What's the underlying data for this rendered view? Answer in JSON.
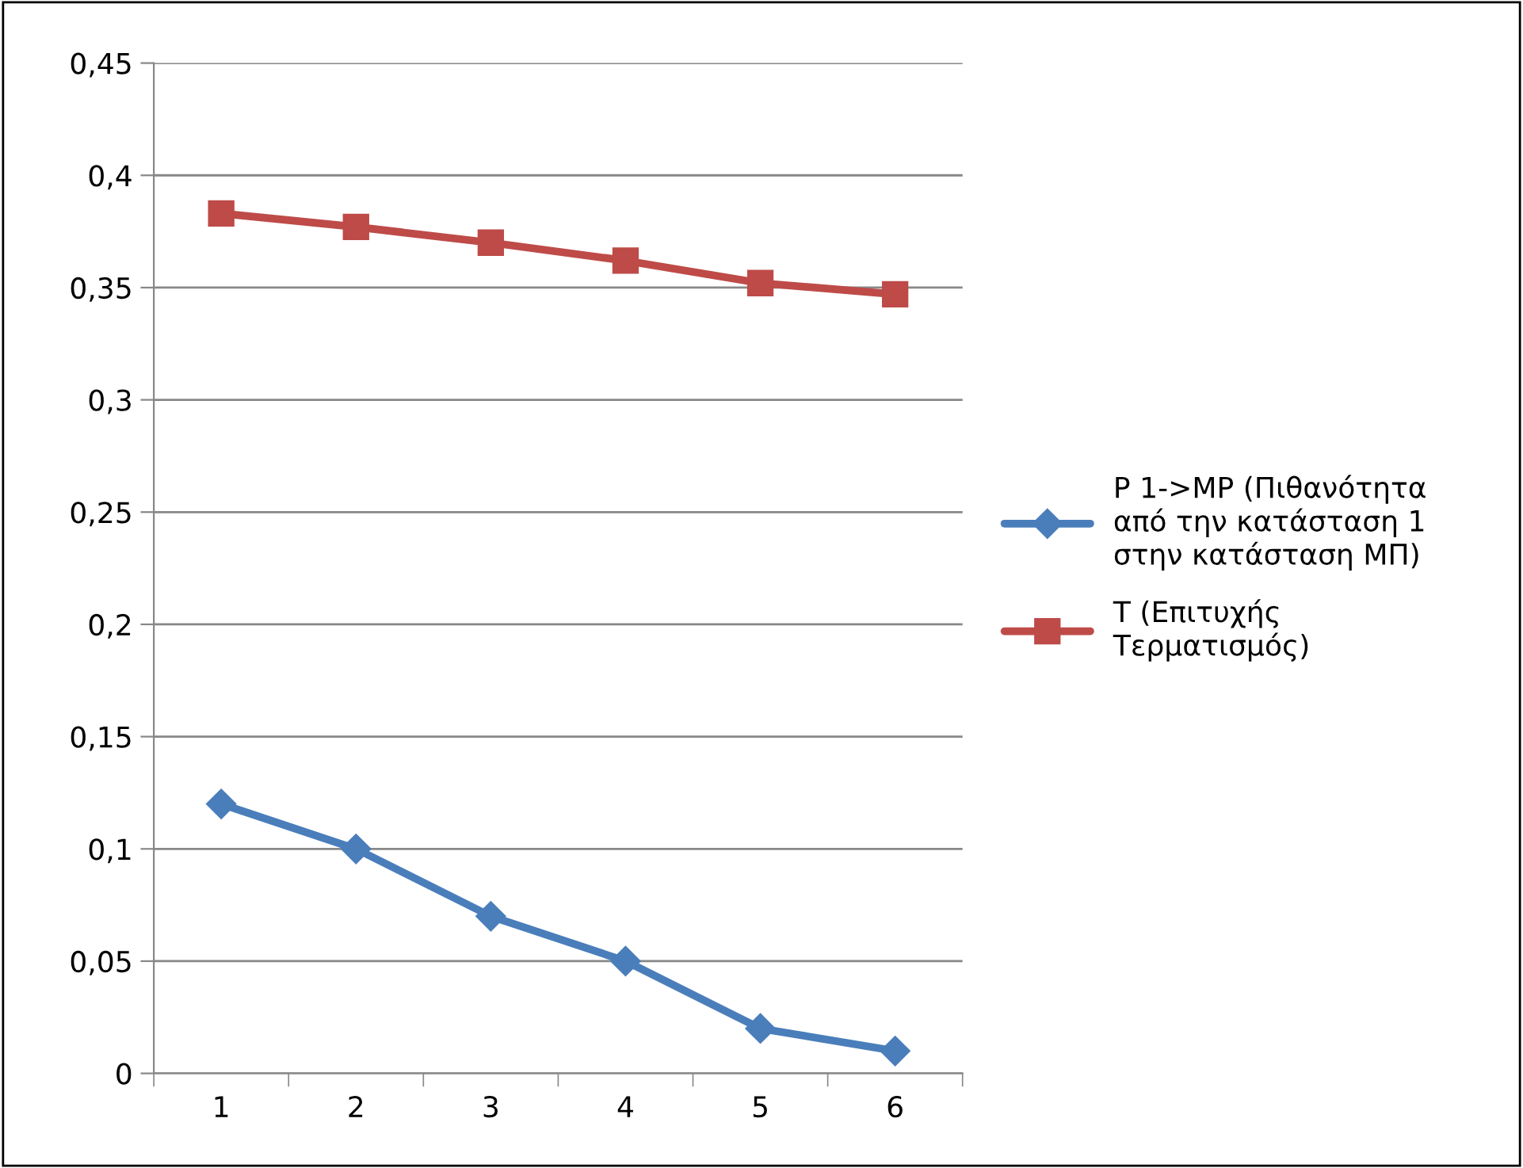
{
  "chart_data": {
    "type": "line",
    "categories": [
      "1",
      "2",
      "3",
      "4",
      "5",
      "6"
    ],
    "series": [
      {
        "name": "P 1->MP (Πιθανότητα\nαπό την κατάσταση 1\nστην κατάσταση ΜΠ)",
        "color": "#4a7ebb",
        "marker": "diamond",
        "values": [
          0.12,
          0.1,
          0.07,
          0.05,
          0.02,
          0.01
        ]
      },
      {
        "name": "T (Επιτυχής\nΤερματισμός)",
        "color": "#be4b48",
        "marker": "square",
        "values": [
          0.383,
          0.377,
          0.37,
          0.362,
          0.352,
          0.347
        ]
      }
    ],
    "ylim": [
      0,
      0.45
    ],
    "yticks": [
      {
        "value": 0,
        "label": "0"
      },
      {
        "value": 0.05,
        "label": "0,05"
      },
      {
        "value": 0.1,
        "label": "0,1"
      },
      {
        "value": 0.15,
        "label": "0,15"
      },
      {
        "value": 0.2,
        "label": "0,2"
      },
      {
        "value": 0.25,
        "label": "0,25"
      },
      {
        "value": 0.3,
        "label": "0,3"
      },
      {
        "value": 0.35,
        "label": "0,35"
      },
      {
        "value": 0.4,
        "label": "0,4"
      },
      {
        "value": 0.45,
        "label": "0,45"
      }
    ],
    "grid": "y",
    "legend": "right",
    "line_style": "solid"
  }
}
